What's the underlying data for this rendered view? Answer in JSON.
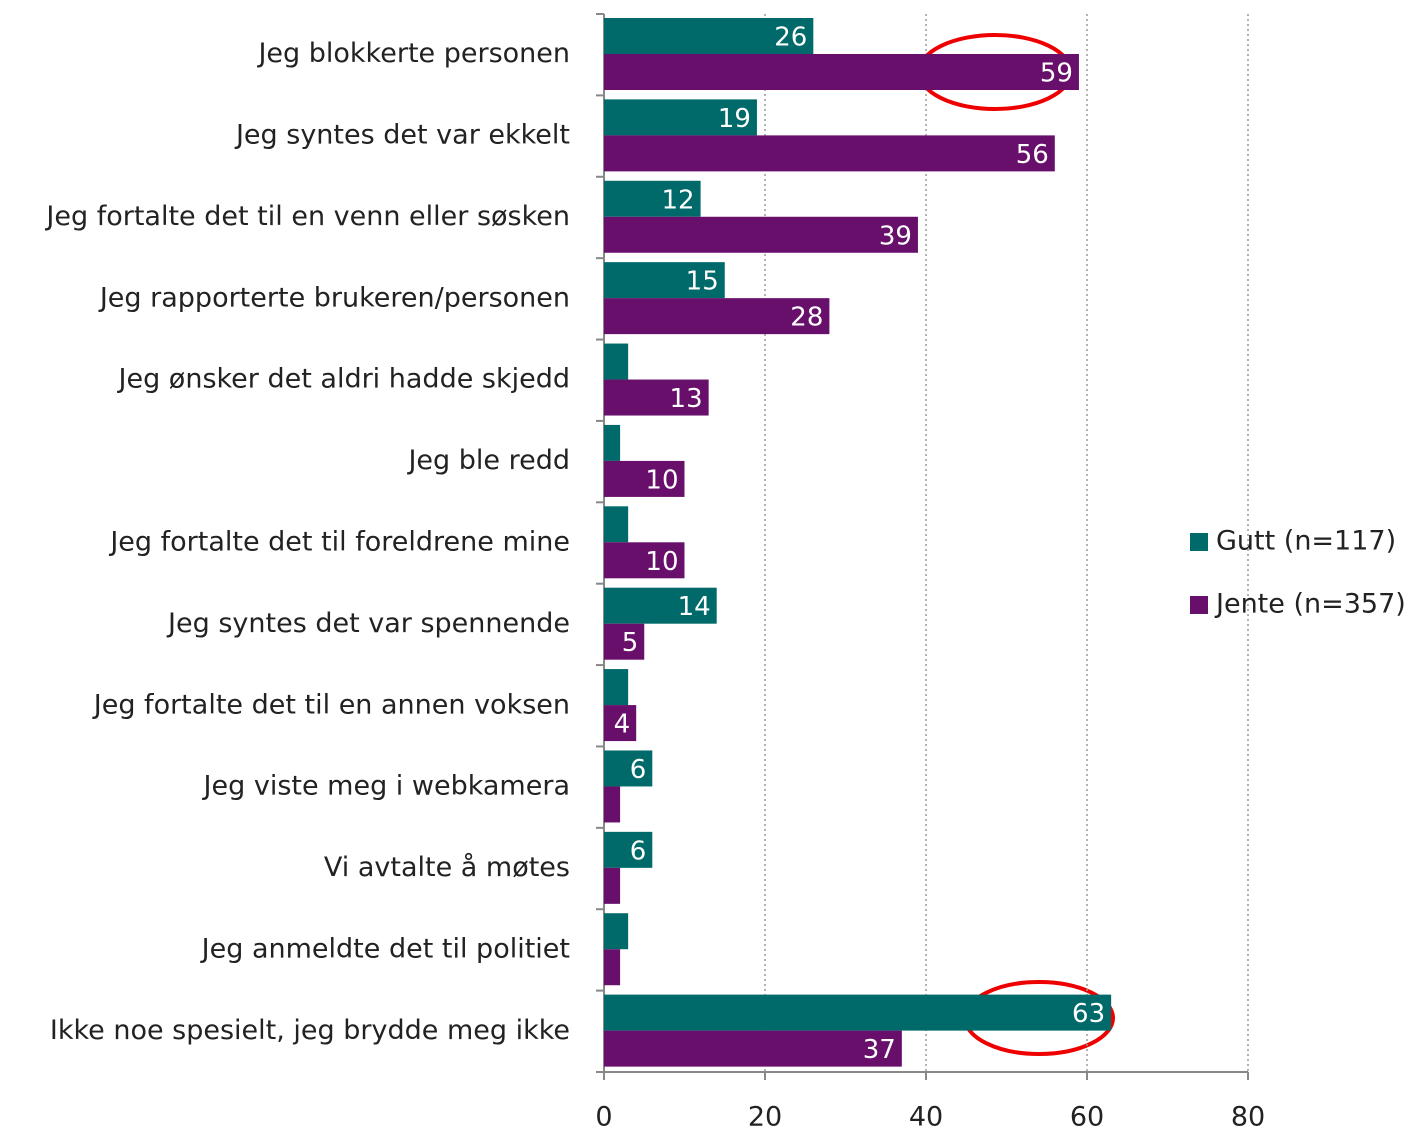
{
  "chart_data": {
    "type": "bar",
    "orientation": "horizontal",
    "categories": [
      "Jeg blokkerte personen",
      "Jeg syntes det var ekkelt",
      "Jeg fortalte det til en venn eller søsken",
      "Jeg rapporterte brukeren/personen",
      "Jeg ønsker det aldri hadde skjedd",
      "Jeg ble redd",
      "Jeg fortalte det til foreldrene mine",
      "Jeg syntes det var spennende",
      "Jeg fortalte det til en annen voksen",
      "Jeg viste meg i webkamera",
      "Vi avtalte å møtes",
      "Jeg anmeldte det til politiet",
      "Ikke noe spesielt, jeg brydde meg ikke"
    ],
    "series": [
      {
        "name": "Gutt (n=117)",
        "color": "#006a6a",
        "values": [
          26,
          19,
          12,
          15,
          3,
          2,
          3,
          14,
          3,
          6,
          6,
          3,
          63
        ]
      },
      {
        "name": "Jente (n=357)",
        "color": "#680f6c",
        "values": [
          59,
          56,
          39,
          28,
          13,
          10,
          10,
          5,
          4,
          2,
          2,
          2,
          37
        ]
      }
    ],
    "xlim": [
      0,
      80
    ],
    "xticks": [
      0,
      20,
      40,
      60,
      80
    ],
    "grid": true,
    "legend": "right"
  }
}
